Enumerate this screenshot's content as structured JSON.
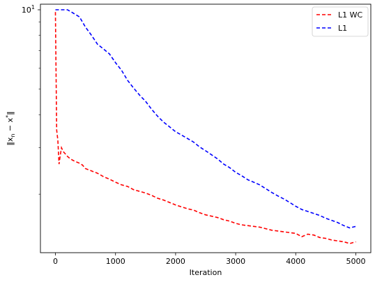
{
  "chart_data": {
    "type": "line",
    "xlabel": "Iteration",
    "ylabel": "‖x_n − x*‖",
    "ylabel_main": "‖x",
    "ylabel_sub": "n",
    "ylabel_mid": " − x",
    "ylabel_sup": "*",
    "ylabel_end": "‖",
    "xlim": [
      -250,
      5250
    ],
    "ylim": [
      1.2,
      10.5
    ],
    "yscale": "log",
    "xticks": [
      0,
      1000,
      2000,
      3000,
      4000,
      5000
    ],
    "xtick_labels": [
      "0",
      "1000",
      "2000",
      "3000",
      "4000",
      "5000"
    ],
    "yticks": [
      10
    ],
    "ytick_label_base": "10",
    "ytick_label_exp": "1",
    "grid": false,
    "legend_position": "top-right",
    "series": [
      {
        "name": "L1 WC",
        "color": "#ff0000",
        "style": "dashed",
        "x": [
          0,
          20,
          40,
          60,
          80,
          100,
          130,
          160,
          200,
          250,
          300,
          350,
          400,
          450,
          500,
          600,
          700,
          800,
          900,
          1000,
          1100,
          1200,
          1300,
          1400,
          1500,
          1600,
          1700,
          1800,
          1900,
          2000,
          2100,
          2200,
          2300,
          2400,
          2500,
          2600,
          2700,
          2800,
          2900,
          3000,
          3100,
          3200,
          3300,
          3400,
          3500,
          3600,
          3700,
          3800,
          3900,
          4000,
          4100,
          4200,
          4300,
          4400,
          4500,
          4600,
          4700,
          4800,
          4900,
          5000
        ],
        "y": [
          9.8,
          3.5,
          3.2,
          2.6,
          2.8,
          3.0,
          2.9,
          2.85,
          2.78,
          2.72,
          2.68,
          2.65,
          2.62,
          2.58,
          2.5,
          2.45,
          2.4,
          2.33,
          2.28,
          2.22,
          2.17,
          2.14,
          2.08,
          2.05,
          2.02,
          1.98,
          1.93,
          1.9,
          1.86,
          1.82,
          1.79,
          1.76,
          1.74,
          1.7,
          1.67,
          1.65,
          1.63,
          1.6,
          1.58,
          1.55,
          1.53,
          1.52,
          1.51,
          1.5,
          1.48,
          1.46,
          1.45,
          1.44,
          1.43,
          1.42,
          1.38,
          1.41,
          1.4,
          1.37,
          1.36,
          1.34,
          1.33,
          1.32,
          1.3,
          1.32
        ]
      },
      {
        "name": "L1",
        "color": "#0000ff",
        "style": "dashed",
        "x": [
          0,
          100,
          200,
          300,
          400,
          500,
          600,
          700,
          800,
          900,
          1000,
          1100,
          1200,
          1300,
          1400,
          1500,
          1600,
          1700,
          1800,
          1900,
          2000,
          2100,
          2200,
          2300,
          2400,
          2500,
          2600,
          2700,
          2800,
          2900,
          3000,
          3100,
          3200,
          3300,
          3400,
          3500,
          3600,
          3700,
          3800,
          3900,
          4000,
          4100,
          4200,
          4300,
          4400,
          4500,
          4600,
          4700,
          4800,
          4900,
          5000
        ],
        "y": [
          10.0,
          10.0,
          10.0,
          9.7,
          9.4,
          8.6,
          8.0,
          7.4,
          7.1,
          6.8,
          6.3,
          5.9,
          5.4,
          5.05,
          4.75,
          4.5,
          4.2,
          3.95,
          3.75,
          3.6,
          3.45,
          3.35,
          3.25,
          3.15,
          3.02,
          2.92,
          2.82,
          2.72,
          2.6,
          2.52,
          2.42,
          2.35,
          2.27,
          2.22,
          2.17,
          2.1,
          2.03,
          1.97,
          1.92,
          1.86,
          1.8,
          1.75,
          1.72,
          1.69,
          1.66,
          1.62,
          1.59,
          1.56,
          1.52,
          1.49,
          1.51
        ]
      }
    ]
  }
}
